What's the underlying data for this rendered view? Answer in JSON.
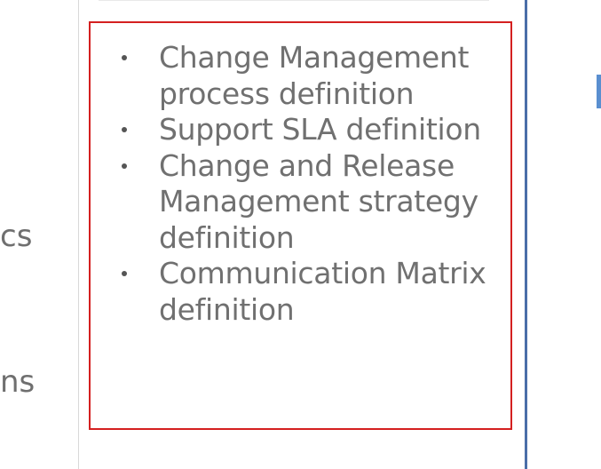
{
  "left_column": {
    "fragment_1": "cs",
    "fragment_2": "ns"
  },
  "card": {
    "bullets": [
      {
        "text": "Change Management process definition"
      },
      {
        "text": "Support SLA definition"
      },
      {
        "text": "Change and Release Management strategy definition"
      },
      {
        "text": "Communication Matrix definition"
      }
    ]
  },
  "colors": {
    "highlight_border": "#d42020",
    "card_right_border": "#4a6ea8",
    "text": "#707070"
  }
}
